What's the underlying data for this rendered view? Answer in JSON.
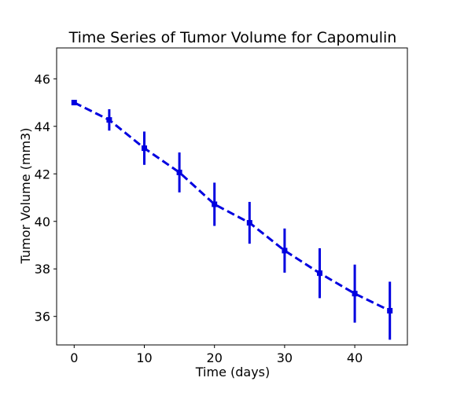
{
  "chart_data": {
    "type": "line",
    "title": "Time Series of Tumor Volume for Capomulin",
    "xlabel": "Time (days)",
    "ylabel": "Tumor Volume (mm3)",
    "xlim": [
      -2.5,
      47.5
    ],
    "ylim": [
      34.8,
      47.3
    ],
    "xticks": [
      0,
      10,
      20,
      30,
      40
    ],
    "yticks": [
      36,
      38,
      40,
      42,
      44,
      46
    ],
    "grid": false,
    "series": [
      {
        "color": "#0000e0",
        "line_style": "dashed",
        "marker": "square",
        "x": [
          0,
          5,
          10,
          15,
          20,
          25,
          30,
          35,
          40,
          45
        ],
        "y": [
          45.0,
          44.27,
          43.08,
          42.06,
          40.72,
          39.94,
          38.77,
          37.82,
          36.96,
          36.24
        ],
        "error": [
          0.0,
          0.45,
          0.7,
          0.84,
          0.91,
          0.88,
          0.93,
          1.05,
          1.22,
          1.22
        ]
      }
    ]
  }
}
